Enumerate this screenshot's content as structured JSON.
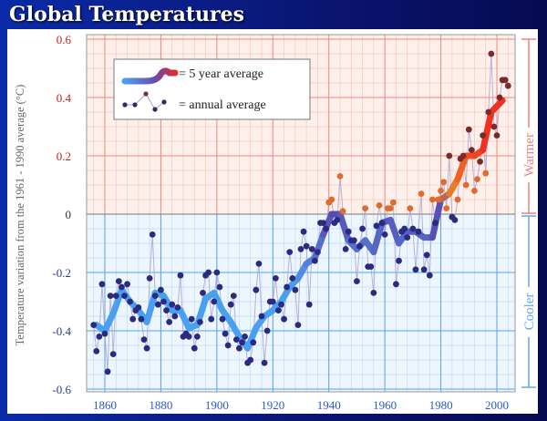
{
  "title": "Global Temperatures",
  "chart_data": {
    "type": "line",
    "title": "Global Temperatures",
    "ylabel": "Temperature variation from the 1961 - 1990 average (°C)",
    "xlabel": "",
    "xlim": [
      1853.5,
      2006.5
    ],
    "ylim": [
      -0.6,
      0.6
    ],
    "x_ticks": [
      "1860",
      "1880",
      "1900",
      "1920",
      "1940",
      "1960",
      "1980",
      "2000"
    ],
    "y_ticks": [
      "0.6",
      "0.4",
      "0.2",
      "0",
      "-0.2",
      "-0.4",
      "-0.6"
    ],
    "grid": true,
    "legend_position": "top-left",
    "region_labels": {
      "warmer": "Warmer",
      "cooler": "Cooler"
    },
    "colors": {
      "warm_bg": "#fdf0ea",
      "cool_bg": "#eef6fd",
      "cool_line": "#4aa0f0",
      "mid_line": "#5a4ab0",
      "warm_line": "#f03020",
      "cool_point": "#2a2a80",
      "warm_point": "#e06a30",
      "hot_point": "#7a2a2a",
      "warmer_label": "#f08080",
      "cooler_label": "#60a8f0"
    },
    "series": [
      {
        "name": "= 5 year average",
        "x": [
          1857,
          1860,
          1863,
          1866,
          1869,
          1872,
          1875,
          1878,
          1881,
          1884,
          1887,
          1890,
          1893,
          1896,
          1899,
          1902,
          1905,
          1908,
          1911,
          1914,
          1917,
          1920,
          1923,
          1926,
          1929,
          1932,
          1935,
          1938,
          1941,
          1944,
          1947,
          1950,
          1953,
          1956,
          1959,
          1962,
          1965,
          1968,
          1971,
          1974,
          1977,
          1980,
          1983,
          1986,
          1989,
          1992,
          1995,
          1998,
          2001,
          2002
        ],
        "values": [
          -0.38,
          -0.4,
          -0.34,
          -0.26,
          -0.3,
          -0.33,
          -0.37,
          -0.27,
          -0.28,
          -0.33,
          -0.33,
          -0.39,
          -0.38,
          -0.29,
          -0.27,
          -0.33,
          -0.37,
          -0.42,
          -0.46,
          -0.39,
          -0.35,
          -0.33,
          -0.3,
          -0.25,
          -0.22,
          -0.17,
          -0.15,
          -0.07,
          0.0,
          0.0,
          -0.09,
          -0.12,
          -0.09,
          -0.13,
          -0.03,
          -0.02,
          -0.1,
          -0.06,
          -0.06,
          -0.08,
          -0.08,
          0.05,
          0.07,
          0.12,
          0.2,
          0.2,
          0.22,
          0.35,
          0.38,
          0.39
        ]
      },
      {
        "name": "= annual average",
        "x_start": 1856,
        "values": [
          -0.38,
          -0.47,
          -0.42,
          -0.24,
          -0.41,
          -0.54,
          -0.28,
          -0.48,
          -0.28,
          -0.23,
          -0.25,
          -0.28,
          -0.24,
          -0.3,
          -0.36,
          -0.33,
          -0.32,
          -0.36,
          -0.43,
          -0.46,
          -0.22,
          -0.07,
          -0.28,
          -0.31,
          -0.26,
          -0.3,
          -0.33,
          -0.37,
          -0.31,
          -0.35,
          -0.32,
          -0.21,
          -0.42,
          -0.41,
          -0.42,
          -0.36,
          -0.46,
          -0.42,
          -0.37,
          -0.27,
          -0.21,
          -0.2,
          -0.36,
          -0.3,
          -0.2,
          -0.25,
          -0.36,
          -0.41,
          -0.45,
          -0.31,
          -0.28,
          -0.43,
          -0.46,
          -0.44,
          -0.42,
          -0.51,
          -0.5,
          -0.44,
          -0.26,
          -0.17,
          -0.35,
          -0.51,
          -0.4,
          -0.3,
          -0.3,
          -0.22,
          -0.33,
          -0.31,
          -0.36,
          -0.25,
          -0.13,
          -0.22,
          -0.26,
          -0.38,
          -0.12,
          -0.06,
          -0.11,
          -0.31,
          -0.12,
          -0.16,
          -0.13,
          -0.03,
          -0.03,
          -0.05,
          0.04,
          0.05,
          -0.03,
          -0.02,
          0.13,
          0.01,
          -0.12,
          -0.06,
          -0.09,
          -0.09,
          -0.23,
          -0.11,
          -0.05,
          0.02,
          -0.18,
          -0.18,
          -0.27,
          -0.04,
          0.03,
          -0.03,
          -0.07,
          0.02,
          0.02,
          0.04,
          -0.24,
          -0.16,
          -0.06,
          -0.05,
          -0.08,
          0.02,
          -0.05,
          -0.19,
          -0.06,
          0.07,
          -0.19,
          -0.14,
          -0.21,
          0.05,
          -0.03,
          0.05,
          0.08,
          0.11,
          0.02,
          0.2,
          -0.01,
          -0.02,
          0.05,
          0.19,
          0.2,
          0.1,
          0.29,
          0.22,
          0.08,
          0.12,
          0.18,
          0.27,
          0.14,
          0.35,
          0.55,
          0.3,
          0.27,
          0.4,
          0.46,
          0.46,
          0.44
        ]
      }
    ]
  }
}
